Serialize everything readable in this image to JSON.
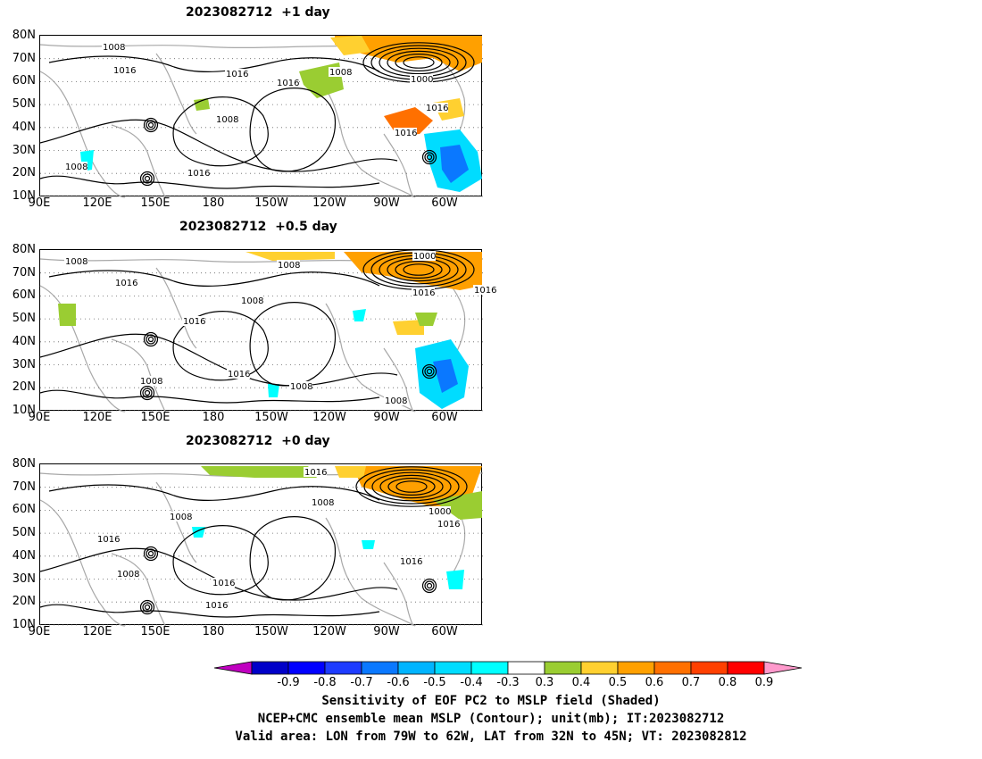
{
  "panels": [
    {
      "title": "2023082712  +1 day",
      "contour_labels": [
        "1008",
        "1016",
        "1016",
        "1008",
        "1016",
        "1008",
        "1000",
        "1016",
        "1016",
        "1008",
        "1016"
      ]
    },
    {
      "title": "2023082712  +0.5 day",
      "contour_labels": [
        "1008",
        "1016",
        "1008",
        "1016",
        "1008",
        "1000",
        "1016",
        "1016",
        "1016",
        "1008",
        "1008",
        "1008"
      ]
    },
    {
      "title": "2023082712  +0 day",
      "contour_labels": [
        "1016",
        "1008",
        "1008",
        "1000",
        "1016",
        "1016",
        "1016",
        "1008",
        "1016",
        "1016"
      ]
    }
  ],
  "lat_labels": [
    "80N",
    "70N",
    "60N",
    "50N",
    "40N",
    "30N",
    "20N",
    "10N"
  ],
  "lon_labels": [
    "90E",
    "120E",
    "150E",
    "180",
    "150W",
    "120W",
    "90W",
    "60W"
  ],
  "colorbar": {
    "labels": [
      "-0.9",
      "-0.8",
      "-0.7",
      "-0.6",
      "-0.5",
      "-0.4",
      "-0.3",
      "0.3",
      "0.4",
      "0.5",
      "0.6",
      "0.7",
      "0.8",
      "0.9"
    ],
    "colors": [
      "#c000c0",
      "#0000c8",
      "#0000ff",
      "#1e3cff",
      "#0a78ff",
      "#00b4ff",
      "#00dcff",
      "#00ffff",
      "#ffffff",
      "#9acd32",
      "#ffd030",
      "#ffa000",
      "#ff7000",
      "#ff4000",
      "#ff0000",
      "#ff99cc"
    ]
  },
  "footer": {
    "line1": "Sensitivity of EOF PC2 to MSLP field (Shaded)",
    "line2": "NCEP+CMC ensemble mean MSLP (Contour); unit(mb); IT:2023082712",
    "line3": "Valid area: LON from 79W to 62W, LAT from 32N to 45N; VT: 2023082812"
  }
}
